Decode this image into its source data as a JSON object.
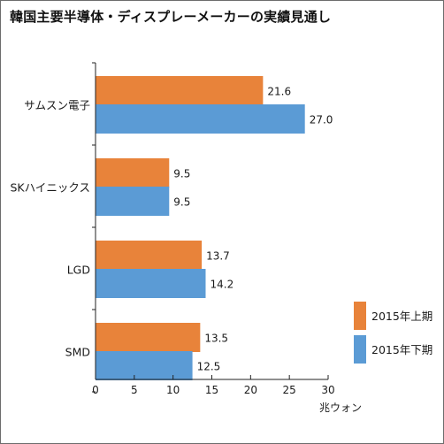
{
  "chart_data": {
    "type": "bar",
    "orientation": "horizontal",
    "title": "韓国主要半導体・ディスプレーメーカーの実績見通し",
    "categories": [
      "サムスン電子",
      "SKハイニックス",
      "LGD",
      "SMD"
    ],
    "series": [
      {
        "name": "2015年上期",
        "color": "#e8833a",
        "values": [
          21.6,
          9.5,
          13.7,
          13.5
        ]
      },
      {
        "name": "2015年下期",
        "color": "#5b9bd5",
        "values": [
          27.0,
          9.5,
          14.2,
          12.5
        ]
      }
    ],
    "value_labels": [
      [
        "21.6",
        "9.5",
        "13.7",
        "13.5"
      ],
      [
        "27.0",
        "9.5",
        "14.2",
        "12.5"
      ]
    ],
    "xticks": [
      "0",
      "5",
      "10",
      "15",
      "20",
      "25",
      "30"
    ],
    "xlim": [
      0,
      30
    ],
    "xlabel": "兆ウォン",
    "ylabel": "",
    "grid": false,
    "legend_position": "right"
  }
}
